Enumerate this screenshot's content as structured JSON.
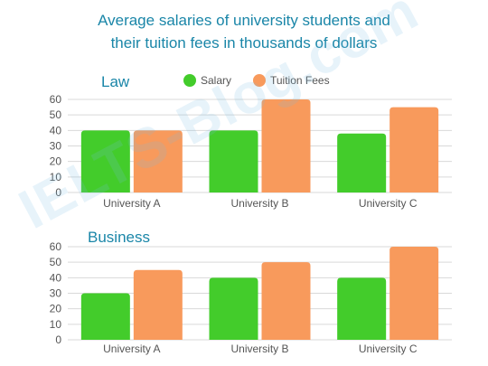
{
  "title_line1": "Average salaries of university students and",
  "title_line2": "their tuition fees in thousands of dollars",
  "watermark": "IELTS-Blog.com",
  "colors": {
    "salary": "#43cc2b",
    "tuition": "#f89a5c",
    "panel_title": "#1a86a8",
    "grid": "#d9d9d9",
    "text": "#555555"
  },
  "chart_data": [
    {
      "type": "bar",
      "title": "Law",
      "categories": [
        "University A",
        "University B",
        "University C"
      ],
      "series": [
        {
          "name": "Salary",
          "values": [
            40,
            40,
            38
          ]
        },
        {
          "name": "Tuition Fees",
          "values": [
            40,
            60,
            55
          ]
        }
      ],
      "yticks": [
        "0",
        "10",
        "20",
        "30",
        "40",
        "50",
        "60"
      ],
      "ylim": [
        0,
        60
      ],
      "grid": true,
      "legend": "top-center"
    },
    {
      "type": "bar",
      "title": "Business",
      "categories": [
        "University A",
        "University B",
        "University C"
      ],
      "series": [
        {
          "name": "Salary",
          "values": [
            30,
            40,
            40
          ]
        },
        {
          "name": "Tuition Fees",
          "values": [
            45,
            50,
            60
          ]
        }
      ],
      "yticks": [
        "0",
        "10",
        "20",
        "30",
        "40",
        "50",
        "60"
      ],
      "ylim": [
        0,
        60
      ],
      "grid": true
    }
  ]
}
